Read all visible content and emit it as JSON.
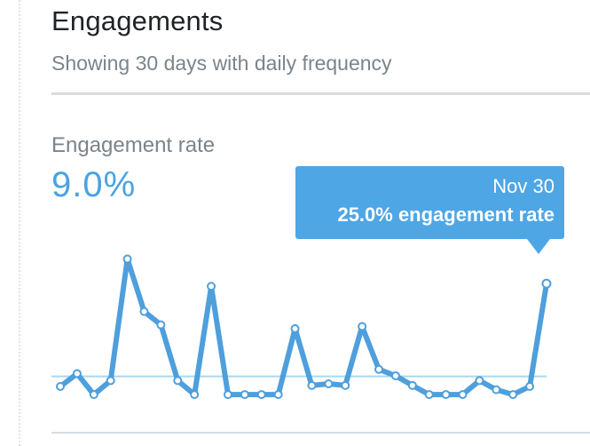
{
  "card": {
    "title": "Engagements",
    "subtitle": "Showing 30 days with daily frequency"
  },
  "metric": {
    "label": "Engagement rate",
    "value": "9.0%"
  },
  "tooltip": {
    "date": "Nov 30",
    "value_text": "25.0% engagement rate"
  },
  "colors": {
    "accent": "#4aa3e2",
    "line": "#4e9fdc",
    "average_line": "#a9d6f0",
    "tooltip_bg": "#4ea6e5"
  },
  "chart_data": {
    "type": "line",
    "series": [
      {
        "values": [
          5.8,
          8.2,
          4.3,
          6.9,
          29.6,
          19.8,
          17.3,
          6.9,
          4.3,
          24.5,
          4.3,
          4.3,
          4.3,
          4.3,
          16.6,
          6.0,
          6.3,
          6.0,
          17.0,
          9.0,
          7.8,
          6.0,
          4.3,
          4.3,
          4.3,
          6.9,
          5.2,
          4.3,
          5.8,
          25.0
        ]
      }
    ],
    "reference_line": {
      "value": 7.7
    },
    "highlighted_index": 29,
    "ylim": [
      0,
      40
    ]
  }
}
